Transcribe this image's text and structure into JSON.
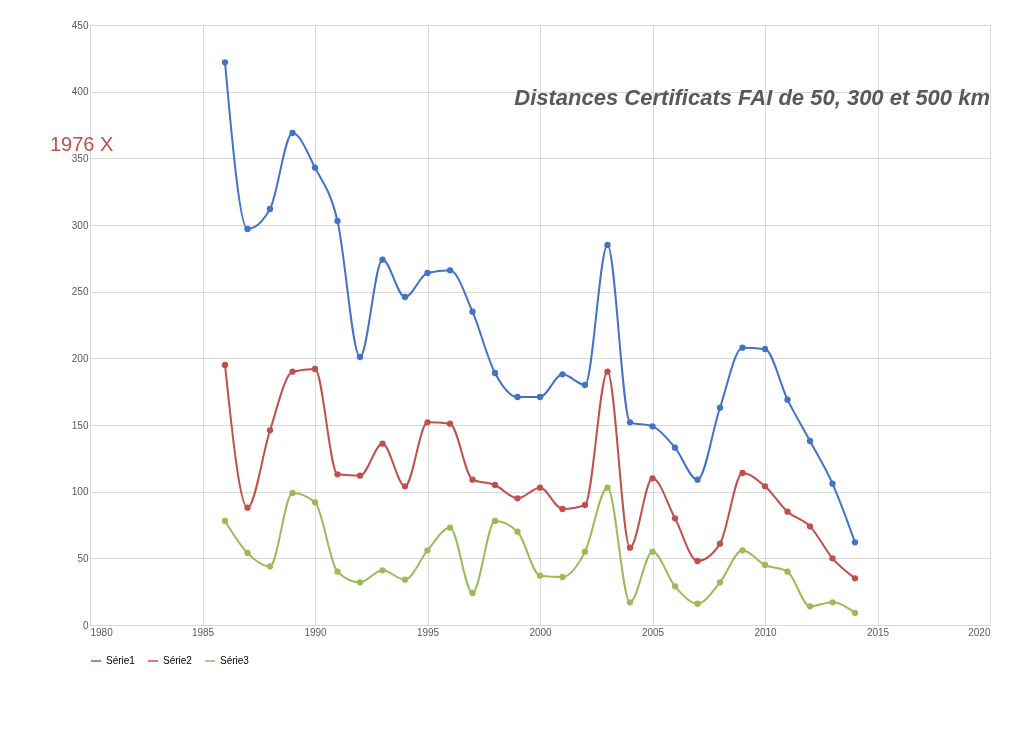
{
  "chart_data": {
    "type": "line",
    "title": "Distances Certificats FAI de 50, 300 et 500 km",
    "annotations": [
      "1976 X"
    ],
    "x": [
      1986,
      1987,
      1988,
      1989,
      1990,
      1991,
      1992,
      1993,
      1994,
      1995,
      1996,
      1997,
      1998,
      1999,
      2000,
      2001,
      2002,
      2003,
      2004,
      2005,
      2006,
      2007,
      2008,
      2009,
      2010,
      2011,
      2012,
      2013,
      2014
    ],
    "series": [
      {
        "name": "Série1",
        "color": "#4472c4",
        "values": [
          422,
          297,
          312,
          369,
          343,
          303,
          201,
          274,
          246,
          264,
          266,
          235,
          189,
          171,
          171,
          188,
          180,
          285,
          152,
          149,
          133,
          109,
          163,
          208,
          207,
          169,
          138,
          106,
          62
        ]
      },
      {
        "name": "Série2",
        "color": "#c0504d",
        "values": [
          195,
          88,
          146,
          190,
          192,
          113,
          112,
          136,
          104,
          152,
          151,
          109,
          105,
          95,
          103,
          87,
          90,
          190,
          58,
          110,
          80,
          48,
          61,
          114,
          104,
          85,
          74,
          50,
          35
        ]
      },
      {
        "name": "Série3",
        "color": "#9bbb59",
        "values": [
          78,
          54,
          44,
          99,
          92,
          40,
          32,
          41,
          34,
          56,
          73,
          24,
          78,
          70,
          37,
          36,
          55,
          103,
          17,
          55,
          29,
          16,
          32,
          56,
          45,
          40,
          14,
          17,
          9
        ]
      }
    ],
    "xlim": [
      1980,
      2020
    ],
    "xticks": [
      1980,
      1985,
      1990,
      1995,
      2000,
      2005,
      2010,
      2015,
      2020
    ],
    "ylim": [
      0,
      450
    ],
    "yticks": [
      0,
      50,
      100,
      150,
      200,
      250,
      300,
      350,
      400,
      450
    ],
    "grid": true,
    "legend": "bottom",
    "marker": "circle",
    "line_style": "solid"
  }
}
